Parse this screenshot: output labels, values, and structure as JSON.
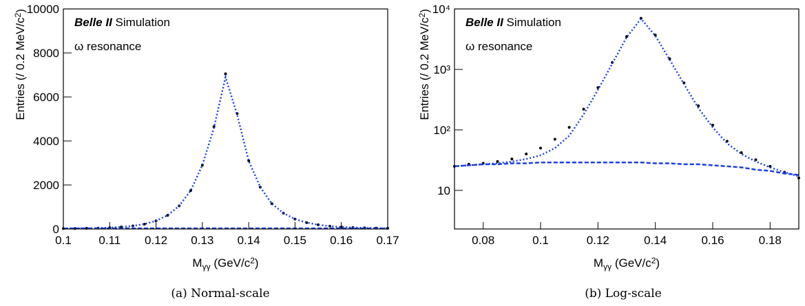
{
  "chart_data": [
    {
      "type": "line",
      "title_bold": "Belle II",
      "title": "Simulation",
      "annotation": "ω resonance",
      "xlabel": [
        "M",
        "γγ",
        " (GeV/c",
        "2",
        ")"
      ],
      "ylabel": [
        "Entries (/ 0.2 MeV/c",
        "2",
        ")"
      ],
      "caption": "(a) Normal-scale",
      "log_y": false,
      "xlim": [
        0.1,
        0.17
      ],
      "xticks": [
        0.1,
        0.11,
        0.12,
        0.13,
        0.14,
        0.15,
        0.16,
        0.17
      ],
      "ylim": [
        0,
        10000
      ],
      "yticks": [
        0,
        2000,
        4000,
        6000,
        8000,
        10000
      ],
      "x": [
        0.1,
        0.1025,
        0.105,
        0.1075,
        0.11,
        0.1125,
        0.115,
        0.1175,
        0.12,
        0.1225,
        0.125,
        0.1275,
        0.13,
        0.1325,
        0.135,
        0.1375,
        0.14,
        0.1425,
        0.145,
        0.1475,
        0.15,
        0.1525,
        0.155,
        0.1575,
        0.16,
        0.1625,
        0.165,
        0.1675,
        0.17
      ],
      "series": [
        {
          "style": "markers",
          "color": "#000000",
          "values": [
            20,
            25,
            30,
            40,
            60,
            90,
            140,
            220,
            370,
            620,
            1050,
            1750,
            2900,
            4650,
            7050,
            5250,
            3100,
            1900,
            1150,
            720,
            450,
            290,
            190,
            130,
            90,
            65,
            50,
            40,
            30
          ]
        },
        {
          "style": "dotted",
          "color": "#1a3ee6",
          "values": [
            20,
            25,
            30,
            40,
            60,
            90,
            140,
            220,
            370,
            620,
            1050,
            1750,
            2900,
            4600,
            6900,
            5200,
            3100,
            1900,
            1150,
            720,
            450,
            290,
            190,
            130,
            90,
            65,
            50,
            40,
            30
          ]
        },
        {
          "style": "dashed",
          "color": "#1a3ee6",
          "values": [
            25,
            26,
            26,
            27,
            27,
            28,
            28,
            28,
            29,
            29,
            29,
            29,
            29,
            29,
            29,
            29,
            29,
            28,
            28,
            28,
            27,
            27,
            26,
            26,
            25,
            25,
            24,
            24,
            23
          ]
        }
      ]
    },
    {
      "type": "line",
      "title_bold": "Belle II",
      "title": "Simulation",
      "annotation": "ω resonance",
      "xlabel": [
        "M",
        "γγ",
        " (GeV/c",
        "2",
        ")"
      ],
      "ylabel": [
        "Entries (/ 0.2 MeV/c",
        "2",
        ")"
      ],
      "caption": "(b) Log-scale",
      "log_y": true,
      "xlim": [
        0.07,
        0.19
      ],
      "xticks": [
        0.08,
        0.1,
        0.12,
        0.14,
        0.16,
        0.18
      ],
      "ylim": [
        2.3,
        10000
      ],
      "yticks": [
        10,
        {
          "value": 100,
          "label": "10²"
        },
        {
          "value": 1000,
          "label": "10³"
        },
        {
          "value": 10000,
          "label": "10⁴"
        }
      ],
      "x": [
        0.07,
        0.075,
        0.08,
        0.085,
        0.09,
        0.095,
        0.1,
        0.105,
        0.11,
        0.115,
        0.12,
        0.125,
        0.13,
        0.135,
        0.14,
        0.145,
        0.15,
        0.155,
        0.16,
        0.165,
        0.17,
        0.175,
        0.18,
        0.185,
        0.19
      ],
      "series": [
        {
          "style": "markers",
          "color": "#000000",
          "values": [
            25,
            27,
            28,
            30,
            33,
            40,
            50,
            70,
            110,
            220,
            500,
            1300,
            3500,
            7000,
            3700,
            1500,
            600,
            250,
            120,
            65,
            42,
            32,
            25,
            20,
            16
          ]
        },
        {
          "style": "dotted",
          "color": "#1a3ee6",
          "values": [
            25,
            26,
            27,
            28,
            30,
            33,
            38,
            50,
            80,
            180,
            460,
            1250,
            3400,
            6900,
            3600,
            1450,
            570,
            230,
            110,
            60,
            40,
            30,
            24,
            20,
            17
          ]
        },
        {
          "style": "dashed",
          "color": "#1a3ee6",
          "values": [
            25,
            26,
            27,
            27,
            28,
            28,
            29,
            29,
            29,
            29,
            29,
            29,
            29,
            29,
            28,
            28,
            27,
            27,
            26,
            25,
            24,
            22,
            21,
            19,
            18
          ]
        }
      ]
    }
  ]
}
